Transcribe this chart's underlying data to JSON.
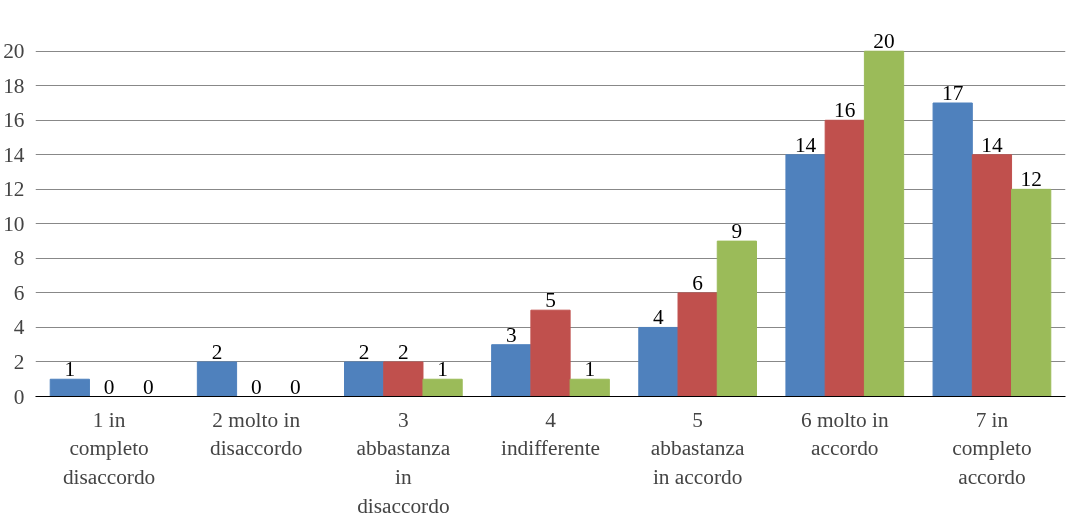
{
  "chart_data": {
    "type": "bar",
    "categories": [
      "1 in completo disaccordo",
      "2 molto in disaccordo",
      "3 abbastanza in disaccordo",
      "4 indifferente",
      "5 abbastanza in accordo",
      "6 molto in accordo",
      "7 in completo accordo"
    ],
    "series": [
      {
        "color": "#4f81bd",
        "values": [
          1,
          2,
          2,
          3,
          4,
          14,
          17
        ]
      },
      {
        "color": "#c0504d",
        "values": [
          0,
          0,
          2,
          5,
          6,
          16,
          14
        ]
      },
      {
        "color": "#9bbb59",
        "values": [
          0,
          0,
          1,
          1,
          9,
          20,
          12
        ]
      }
    ],
    "ylim": [
      0,
      20
    ],
    "yticks": [
      0,
      2,
      4,
      6,
      8,
      10,
      12,
      14,
      16,
      18,
      20
    ],
    "grid": "y",
    "data_labels": true
  }
}
